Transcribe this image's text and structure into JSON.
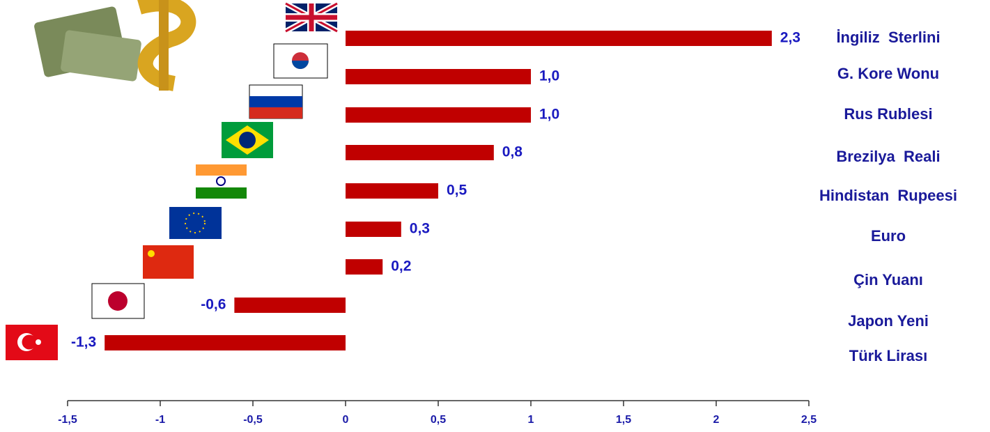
{
  "chart_data": {
    "type": "bar",
    "orientation": "horizontal",
    "categories": [
      "İngiliz  Sterlini",
      "G. Kore Wonu",
      "Rus Rublesi",
      "Brezilya  Reali",
      "Hindistan  Rupeesi",
      "Euro",
      "Çin Yuanı",
      "Japon Yeni",
      "Türk Lirası"
    ],
    "values": [
      2.3,
      1.0,
      1.0,
      0.8,
      0.5,
      0.3,
      0.2,
      -0.6,
      -1.3
    ],
    "value_labels": [
      "2,3",
      "1,0",
      "1,0",
      "0,8",
      "0,5",
      "0,3",
      "0,2",
      "-0,6",
      "-1,3"
    ],
    "color": "#c00000",
    "xlim": [
      -1.5,
      2.5
    ],
    "xticks": [
      {
        "value": -1.5,
        "label": "-1,5"
      },
      -1,
      {
        "value": -0.5,
        "label": "-0,5"
      },
      0,
      {
        "value": 0.5,
        "label": "0,5"
      },
      1,
      {
        "value": 1.5,
        "label": "1,5"
      },
      2,
      {
        "value": 2.5,
        "label": "2,5"
      }
    ],
    "grid": false
  }
}
